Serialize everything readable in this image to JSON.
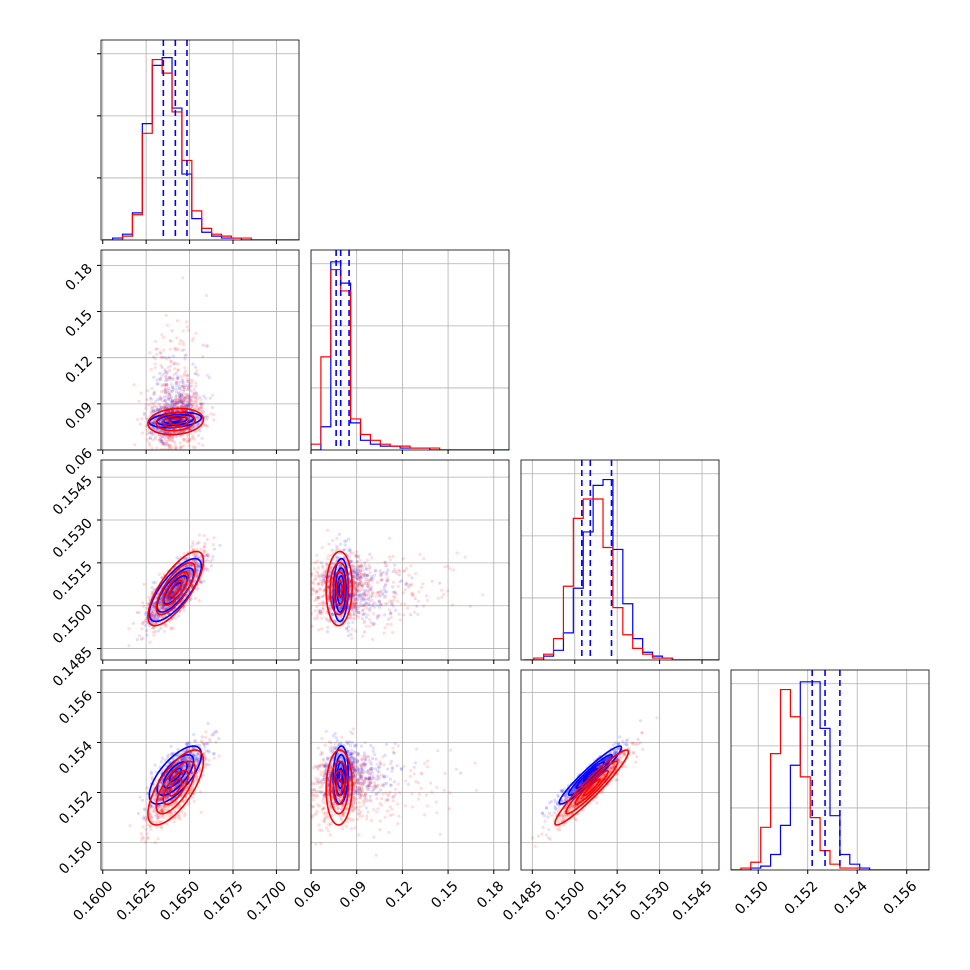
{
  "colors": {
    "blue": "#0000ff",
    "red": "#ff0000",
    "grid": "#b0b0b0",
    "axis": "#000000"
  },
  "chart_data": {
    "type": "corner",
    "grid": true,
    "parameters": [
      {
        "ticks": [
          0.16,
          0.1625,
          0.165,
          0.1675,
          0.17
        ],
        "tick_labels": [
          "0.1600",
          "0.1625",
          "0.1650",
          "0.1675",
          "0.1700"
        ],
        "range": [
          0.1599,
          0.1713
        ]
      },
      {
        "ticks": [
          0.06,
          0.09,
          0.12,
          0.15,
          0.18
        ],
        "tick_labels": [
          "0.06",
          "0.09",
          "0.12",
          "0.15",
          "0.18"
        ],
        "range": [
          0.06,
          0.19
        ]
      },
      {
        "ticks": [
          0.1485,
          0.15,
          0.1515,
          0.153,
          0.1545
        ],
        "tick_labels": [
          "0.1485",
          "0.1500",
          "0.1515",
          "0.1530",
          "0.1545"
        ],
        "range": [
          0.1481,
          0.1551
        ]
      },
      {
        "ticks": [
          0.15,
          0.152,
          0.154,
          0.156
        ],
        "tick_labels": [
          "0.150",
          "0.152",
          "0.154",
          "0.156"
        ],
        "range": [
          0.1489,
          0.1569
        ]
      }
    ],
    "series": [
      {
        "color": "blue",
        "medians": [
          0.16418,
          0.0795,
          0.15055,
          0.1527
        ],
        "quantiles_16_84": [
          [
            0.16349,
            0.16485
          ],
          [
            0.0765,
            0.085
          ],
          [
            0.15025,
            0.1513
          ],
          [
            0.15218,
            0.1533
          ]
        ],
        "spreads": [
          0.00075,
          0.0055,
          0.00055,
          0.00058
        ],
        "correlations": {
          "1_0": 0.3,
          "2_0": 0.75,
          "2_1": 0.1,
          "3_0": 0.7,
          "3_1": 0.1,
          "3_2": 0.95
        },
        "histograms": [
          {
            "edges_start": 0.16,
            "bin_width": 0.00057,
            "counts": [
              0.0,
              0.01,
              0.03,
              0.14,
              0.6,
              0.9,
              0.94,
              0.68,
              0.34,
              0.11,
              0.04,
              0.02,
              0.01,
              0.01,
              0.0,
              0.0,
              0.0,
              0.0,
              0.0,
              0.0
            ]
          },
          {
            "edges_start": 0.06,
            "bin_width": 0.0065,
            "counts": [
              0.0,
              0.12,
              0.97,
              0.86,
              0.14,
              0.05,
              0.03,
              0.02,
              0.02,
              0.01,
              0.01,
              0.01,
              0.0,
              0.0,
              0.0,
              0.0,
              0.0,
              0.0,
              0.0,
              0.0
            ]
          },
          {
            "edges_start": 0.1482,
            "bin_width": 0.00035,
            "counts": [
              0.0,
              0.0,
              0.02,
              0.05,
              0.14,
              0.37,
              0.66,
              0.9,
              0.93,
              0.57,
              0.29,
              0.11,
              0.04,
              0.02,
              0.01,
              0.0,
              0.0,
              0.0,
              0.0,
              0.0
            ]
          },
          {
            "edges_start": 0.1489,
            "bin_width": 0.0004,
            "counts": [
              0.0,
              0.0,
              0.01,
              0.02,
              0.08,
              0.23,
              0.54,
              0.97,
              0.97,
              0.73,
              0.28,
              0.08,
              0.03,
              0.01,
              0.0,
              0.0,
              0.0,
              0.0,
              0.0,
              0.0
            ]
          }
        ]
      },
      {
        "color": "red",
        "medians": [
          0.1642,
          0.0785,
          0.1506,
          0.1522
        ],
        "quantiles_16_84": [
          [
            0.1635,
            0.1649
          ],
          [
            0.074,
            0.084
          ],
          [
            0.1499,
            0.1512
          ],
          [
            0.1513,
            0.1531
          ]
        ],
        "spreads": [
          0.0008,
          0.0095,
          0.00065,
          0.00075
        ],
        "correlations": {
          "1_0": 0.15,
          "2_0": 0.75,
          "2_1": 0.05,
          "3_0": 0.7,
          "3_1": 0.05,
          "3_2": 0.95
        },
        "histograms": [
          {
            "edges_start": 0.16,
            "bin_width": 0.00057,
            "counts": [
              0.0,
              0.0,
              0.02,
              0.13,
              0.55,
              0.93,
              0.86,
              0.66,
              0.41,
              0.15,
              0.06,
              0.03,
              0.02,
              0.01,
              0.01,
              0.0,
              0.0,
              0.0,
              0.0,
              0.0
            ]
          },
          {
            "edges_start": 0.06,
            "bin_width": 0.0065,
            "counts": [
              0.03,
              0.48,
              0.93,
              0.82,
              0.16,
              0.08,
              0.05,
              0.03,
              0.02,
              0.02,
              0.01,
              0.01,
              0.01,
              0.0,
              0.0,
              0.0,
              0.0,
              0.0,
              0.0,
              0.0
            ]
          },
          {
            "edges_start": 0.1482,
            "bin_width": 0.00035,
            "counts": [
              0.0,
              0.01,
              0.03,
              0.11,
              0.38,
              0.73,
              0.83,
              0.83,
              0.58,
              0.27,
              0.13,
              0.06,
              0.03,
              0.01,
              0.01,
              0.0,
              0.0,
              0.0,
              0.0,
              0.0
            ]
          },
          {
            "edges_start": 0.1489,
            "bin_width": 0.0004,
            "counts": [
              0.0,
              0.01,
              0.04,
              0.22,
              0.6,
              0.93,
              0.79,
              0.48,
              0.27,
              0.1,
              0.03,
              0.01,
              0.01,
              0.0,
              0.0,
              0.0,
              0.0,
              0.0,
              0.0,
              0.0
            ]
          }
        ]
      }
    ]
  }
}
